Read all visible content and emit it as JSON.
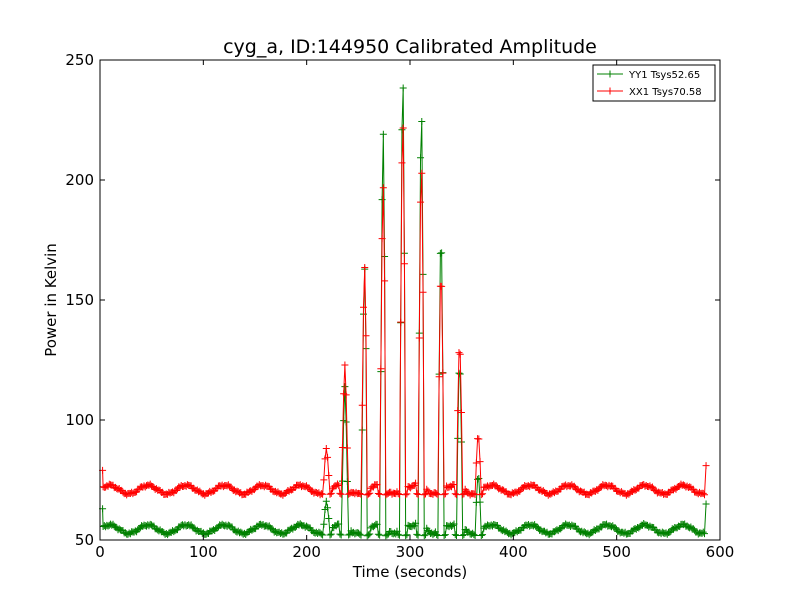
{
  "chart_data": {
    "type": "line",
    "title": "cyg_a, ID:144950 Calibrated Amplitude",
    "xlabel": "Time (seconds)",
    "ylabel": "Power in Kelvin",
    "xlim": [
      0,
      600
    ],
    "ylim": [
      50,
      250
    ],
    "xticks": [
      0,
      100,
      200,
      300,
      400,
      500,
      600
    ],
    "yticks": [
      50,
      100,
      150,
      200,
      250
    ],
    "xtick_labels": [
      "0",
      "100",
      "200",
      "300",
      "400",
      "500",
      "600"
    ],
    "ytick_labels": [
      "50",
      "100",
      "150",
      "200",
      "250"
    ],
    "grid": false,
    "legend_position": "top-right",
    "marker": "+",
    "t_start": 3,
    "t_end": 586,
    "sample_step": 1.2,
    "series": [
      {
        "name": "YY1 Tsys52.65",
        "color": "#008000",
        "baseline": 54.5,
        "ripple_amplitude": 1.8,
        "ripple_period": 37,
        "start_value": 63,
        "end_value": 65,
        "dip_value": 51,
        "spikes": [
          {
            "t": 219,
            "peak": 67
          },
          {
            "t": 237,
            "peak": 113
          },
          {
            "t": 256,
            "peak": 165
          },
          {
            "t": 274,
            "peak": 220
          },
          {
            "t": 293,
            "peak": 245
          },
          {
            "t": 311,
            "peak": 229
          },
          {
            "t": 330,
            "peak": 179
          },
          {
            "t": 348,
            "peak": 123
          },
          {
            "t": 366,
            "peak": 78
          }
        ]
      },
      {
        "name": "XX1 Tsys70.58",
        "color": "#ff0000",
        "baseline": 71,
        "ripple_amplitude": 1.8,
        "ripple_period": 37,
        "start_value": 79,
        "end_value": 81,
        "dip_value": 68,
        "spikes": [
          {
            "t": 219,
            "peak": 89
          },
          {
            "t": 237,
            "peak": 122
          },
          {
            "t": 256,
            "peak": 165
          },
          {
            "t": 274,
            "peak": 197
          },
          {
            "t": 293,
            "peak": 227
          },
          {
            "t": 311,
            "peak": 206
          },
          {
            "t": 330,
            "peak": 163
          },
          {
            "t": 348,
            "peak": 131
          },
          {
            "t": 366,
            "peak": 95
          }
        ]
      }
    ]
  }
}
